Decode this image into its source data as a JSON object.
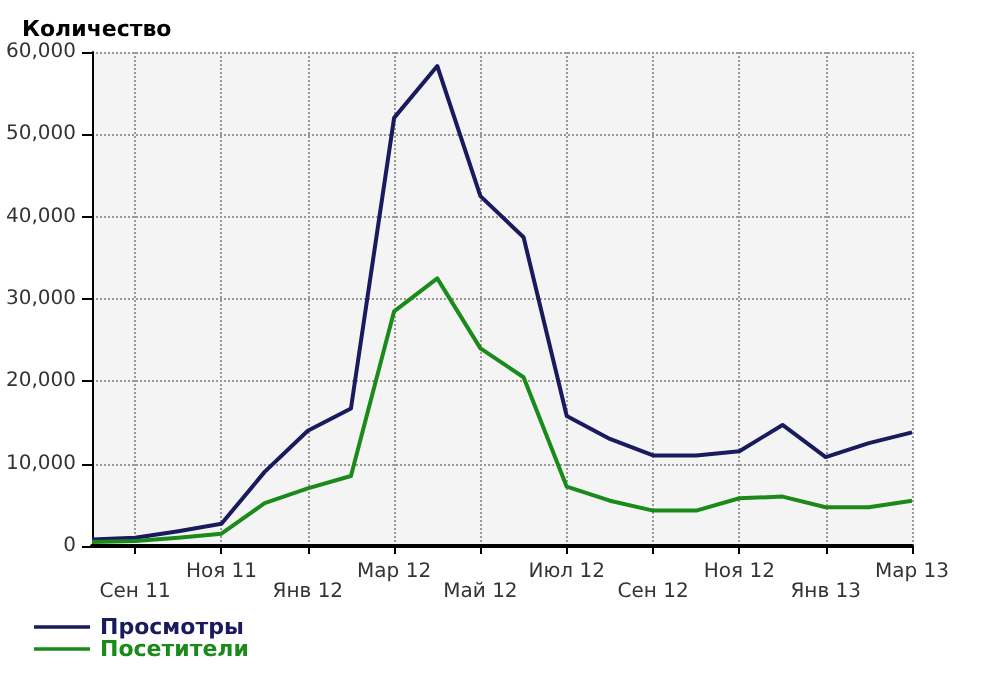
{
  "chart_data": {
    "type": "line",
    "title": "Количество",
    "categories": [
      null,
      "Сен 11",
      null,
      "Ноя 11",
      null,
      "Янв 12",
      null,
      "Мар 12",
      null,
      "Май 12",
      null,
      "Июл 12",
      null,
      "Сен 12",
      null,
      "Ноя 12",
      null,
      "Янв 13",
      null,
      "Мар 13"
    ],
    "series": [
      {
        "name": "Просмотры",
        "color": "#1a1a5e",
        "values": [
          800,
          1000,
          1800,
          2700,
          9000,
          14000,
          16700,
          52000,
          58300,
          42500,
          37500,
          15800,
          13000,
          11000,
          11000,
          11500,
          14700,
          10800,
          12500,
          13800
        ]
      },
      {
        "name": "Посетители",
        "color": "#1a8a1a",
        "values": [
          500,
          600,
          1000,
          1500,
          5200,
          7000,
          8500,
          28500,
          32500,
          24000,
          20500,
          7200,
          5500,
          4300,
          4300,
          5800,
          6000,
          4700,
          4700,
          5500
        ]
      }
    ],
    "ylim": [
      0,
      60000
    ],
    "yticks": [
      0,
      {
        "value": 10000,
        "label": "10,000"
      },
      {
        "value": 20000,
        "label": "20,000"
      },
      {
        "value": 30000,
        "label": "30,000"
      },
      {
        "value": 40000,
        "label": "40,000"
      },
      {
        "value": 50000,
        "label": "50,000"
      },
      {
        "value": 60000,
        "label": "60,000"
      }
    ],
    "grid": true,
    "legend": "bottom left",
    "marker": "none",
    "line_style": "solid"
  }
}
